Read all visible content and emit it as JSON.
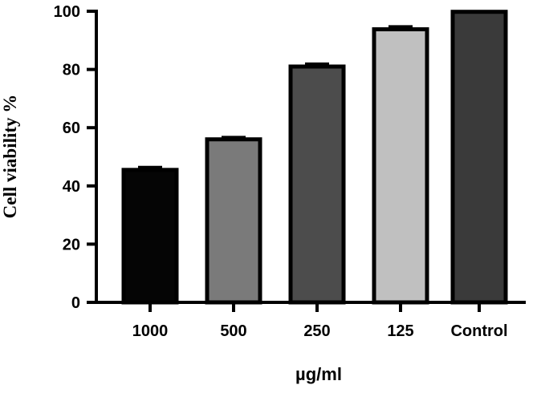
{
  "chart_data": {
    "type": "bar",
    "categories": [
      "1000",
      "500",
      "250",
      "125",
      "Control"
    ],
    "values": [
      45.5,
      56,
      81,
      93.8,
      99.8
    ],
    "errors": [
      1.0,
      0.8,
      1.0,
      1.0,
      0
    ],
    "colors": [
      "#050505",
      "#7a7a7a",
      "#4c4c4c",
      "#c0c0c0",
      "#3a3a3a"
    ],
    "xlabel": "µg/ml",
    "ylabel": "Cell viability %",
    "ylim": [
      0,
      100
    ],
    "yticks": [
      "0",
      "20",
      "40",
      "60",
      "80",
      "100"
    ],
    "grid": false
  }
}
